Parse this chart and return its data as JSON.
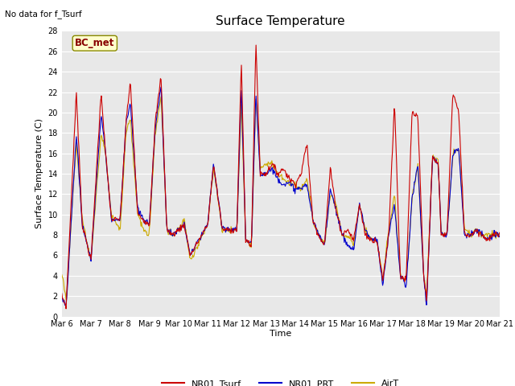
{
  "title": "Surface Temperature",
  "ylabel": "Surface Temperature (C)",
  "xlabel": "Time",
  "ylim": [
    0,
    28
  ],
  "annotation_text": "No data for f_Tsurf",
  "bc_met_label": "BC_met",
  "legend_labels": [
    "NR01_Tsurf",
    "NR01_PRT",
    "AirT"
  ],
  "legend_colors": [
    "#cc0000",
    "#0000cc",
    "#ccaa00"
  ],
  "bg_color": "#e8e8e8",
  "x_tick_labels": [
    "Mar 6",
    "Mar 7",
    "Mar 8",
    "Mar 9",
    "Mar 10",
    "Mar 11",
    "Mar 12",
    "Mar 13",
    "Mar 14",
    "Mar 15",
    "Mar 16",
    "Mar 17",
    "Mar 18",
    "Mar 19",
    "Mar 20",
    "Mar 21"
  ],
  "num_points": 720,
  "title_fontsize": 11,
  "label_fontsize": 8,
  "tick_fontsize": 7,
  "legend_fontsize": 8
}
